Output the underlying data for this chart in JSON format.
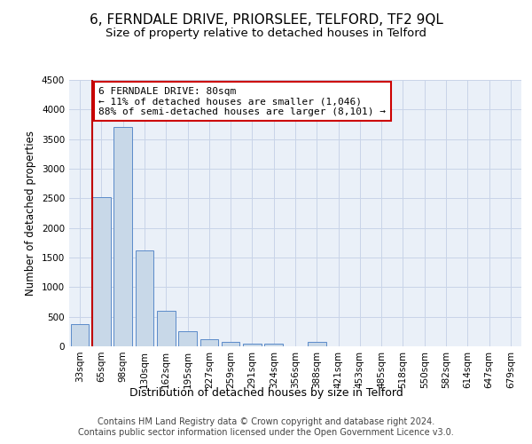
{
  "title": "6, FERNDALE DRIVE, PRIORSLEE, TELFORD, TF2 9QL",
  "subtitle": "Size of property relative to detached houses in Telford",
  "xlabel": "Distribution of detached houses by size in Telford",
  "ylabel": "Number of detached properties",
  "categories": [
    "33sqm",
    "65sqm",
    "98sqm",
    "130sqm",
    "162sqm",
    "195sqm",
    "227sqm",
    "259sqm",
    "291sqm",
    "324sqm",
    "356sqm",
    "388sqm",
    "421sqm",
    "453sqm",
    "485sqm",
    "518sqm",
    "550sqm",
    "582sqm",
    "614sqm",
    "647sqm",
    "679sqm"
  ],
  "values": [
    380,
    2520,
    3700,
    1620,
    600,
    250,
    120,
    70,
    50,
    50,
    0,
    70,
    0,
    0,
    0,
    0,
    0,
    0,
    0,
    0,
    0
  ],
  "bar_color": "#c8d8e8",
  "bar_edge_color": "#5b8bc9",
  "grid_color": "#c8d4e8",
  "background_color": "#eaf0f8",
  "ylim": [
    0,
    4500
  ],
  "yticks": [
    0,
    500,
    1000,
    1500,
    2000,
    2500,
    3000,
    3500,
    4000,
    4500
  ],
  "vline_color": "#c00000",
  "annotation_text": "6 FERNDALE DRIVE: 80sqm\n← 11% of detached houses are smaller (1,046)\n88% of semi-detached houses are larger (8,101) →",
  "annotation_box_color": "#cc0000",
  "footer": "Contains HM Land Registry data © Crown copyright and database right 2024.\nContains public sector information licensed under the Open Government Licence v3.0.",
  "title_fontsize": 11,
  "subtitle_fontsize": 9.5,
  "xlabel_fontsize": 9,
  "ylabel_fontsize": 8.5,
  "tick_fontsize": 7.5,
  "footer_fontsize": 7
}
